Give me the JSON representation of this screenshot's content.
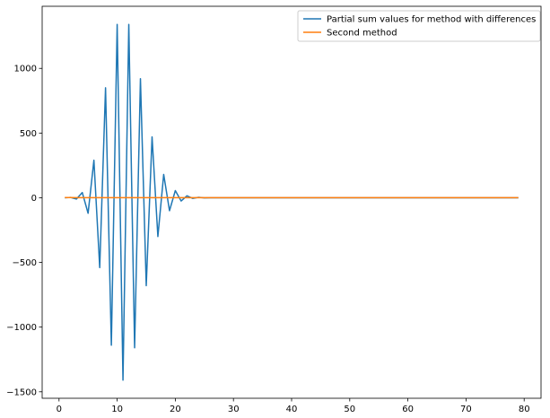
{
  "chart_data": {
    "type": "line",
    "title": "",
    "xlabel": "",
    "ylabel": "",
    "xlim": [
      -2.9,
      82.9
    ],
    "ylim": [
      -1550,
      1480
    ],
    "xticks": [
      0,
      10,
      20,
      30,
      40,
      50,
      60,
      70,
      80
    ],
    "yticks": [
      -1500,
      -1000,
      -500,
      0,
      500,
      1000
    ],
    "ytick_labels": [
      "−1500",
      "−1000",
      "−500",
      "0",
      "500",
      "1000"
    ],
    "grid": false,
    "legend_position": "top-right",
    "series": [
      {
        "name": "Partial sum values for method with differences",
        "color": "#1f77b4",
        "x": [
          1,
          2,
          3,
          4,
          5,
          6,
          7,
          8,
          9,
          10,
          11,
          12,
          13,
          14,
          15,
          16,
          17,
          18,
          19,
          20,
          21,
          22,
          23,
          24,
          25,
          26,
          27,
          28,
          29,
          30,
          31,
          32,
          33,
          34,
          35,
          36,
          37,
          38,
          39,
          40,
          41,
          42,
          43,
          44,
          45,
          46,
          47,
          48,
          49,
          50,
          51,
          52,
          53,
          54,
          55,
          56,
          57,
          58,
          59,
          60,
          61,
          62,
          63,
          64,
          65,
          66,
          67,
          68,
          69,
          70,
          71,
          72,
          73,
          74,
          75,
          76,
          77,
          78,
          79
        ],
        "values": [
          0,
          2,
          -10,
          40,
          -120,
          290,
          -540,
          850,
          -1140,
          1340,
          -1410,
          1340,
          -1160,
          920,
          -680,
          470,
          -300,
          180,
          -100,
          55,
          -25,
          15,
          -5,
          3,
          -1,
          0,
          0,
          0,
          0,
          0,
          0,
          0,
          0,
          0,
          0,
          0,
          0,
          0,
          0,
          0,
          0,
          0,
          0,
          0,
          0,
          0,
          0,
          0,
          0,
          0,
          0,
          0,
          0,
          0,
          0,
          0,
          0,
          0,
          0,
          0,
          0,
          0,
          0,
          0,
          0,
          0,
          0,
          0,
          0,
          0,
          0,
          0,
          0,
          0,
          0,
          0,
          0,
          0,
          0
        ]
      },
      {
        "name": "Second method",
        "color": "#ff7f0e",
        "x": [
          1,
          2,
          3,
          4,
          5,
          6,
          7,
          8,
          9,
          10,
          11,
          12,
          13,
          14,
          15,
          16,
          17,
          18,
          19,
          20,
          21,
          22,
          23,
          24,
          25,
          26,
          27,
          28,
          29,
          30,
          31,
          32,
          33,
          34,
          35,
          36,
          37,
          38,
          39,
          40,
          41,
          42,
          43,
          44,
          45,
          46,
          47,
          48,
          49,
          50,
          51,
          52,
          53,
          54,
          55,
          56,
          57,
          58,
          59,
          60,
          61,
          62,
          63,
          64,
          65,
          66,
          67,
          68,
          69,
          70,
          71,
          72,
          73,
          74,
          75,
          76,
          77,
          78,
          79
        ],
        "values": [
          1,
          1,
          0.5,
          0.5,
          0.5,
          0.5,
          0.5,
          0.5,
          0.5,
          0.5,
          0.5,
          0.5,
          0.5,
          0.5,
          0.5,
          0.5,
          0.5,
          0.5,
          0.5,
          0.5,
          0.5,
          0.5,
          0.5,
          0.5,
          0.5,
          0.5,
          0.5,
          0.5,
          0.5,
          0.5,
          0.5,
          0.5,
          0.5,
          0.5,
          0.5,
          0.5,
          0.5,
          0.5,
          0.5,
          0.5,
          0.5,
          0.5,
          0.5,
          0.5,
          0.5,
          0.5,
          0.5,
          0.5,
          0.5,
          0.5,
          0.5,
          0.5,
          0.5,
          0.5,
          0.5,
          0.5,
          0.5,
          0.5,
          0.5,
          0.5,
          0.5,
          0.5,
          0.5,
          0.5,
          0.5,
          0.5,
          0.5,
          0.5,
          0.5,
          0.5,
          0.5,
          0.5,
          0.5,
          0.5,
          0.5,
          0.5,
          0.5,
          0.5,
          0.5
        ]
      }
    ]
  }
}
